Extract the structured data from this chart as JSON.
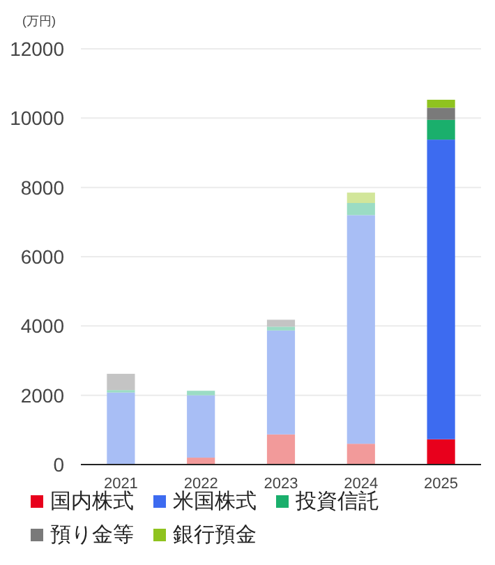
{
  "chart_data": {
    "type": "bar",
    "stacked": true,
    "ylabel": "(万円)",
    "categories": [
      "2021",
      "2022",
      "2023",
      "2024",
      "2025"
    ],
    "ylim": [
      0,
      12000
    ],
    "yticks": [
      0,
      2000,
      4000,
      6000,
      8000,
      10000,
      12000
    ],
    "grid": "y",
    "legend": "bottom",
    "series": [
      {
        "name": "国内株式",
        "color": "#e8001c",
        "colors": [
          "#f29a9a",
          "#f29a9a",
          "#f29a9a",
          "#f29a9a",
          "#e8001c"
        ],
        "values": [
          0,
          200,
          870,
          600,
          730
        ]
      },
      {
        "name": "米国株式",
        "color": "#3d6bf0",
        "colors": [
          "#a8bef5",
          "#a8bef5",
          "#a8bef5",
          "#a8bef5",
          "#3d6bf0"
        ],
        "values": [
          2080,
          1800,
          3000,
          6600,
          8650
        ]
      },
      {
        "name": "投資信託",
        "color": "#1aaf6c",
        "colors": [
          "#9bdcc4",
          "#9bdcc4",
          "#9bdcc4",
          "#9bdcc4",
          "#1aaf6c"
        ],
        "values": [
          70,
          130,
          110,
          350,
          570
        ]
      },
      {
        "name": "預り金等",
        "color": "#7a7a7a",
        "colors": [
          "#c4c4c4",
          null,
          "#c4c4c4",
          "#c4c4c4",
          "#7a7a7a"
        ],
        "values": [
          470,
          null,
          200,
          0,
          350
        ]
      },
      {
        "name": "銀行預金",
        "color": "#8fc31f",
        "colors": [
          "#d2e69a",
          "#d2e69a",
          "#d2e69a",
          "#d2e69a",
          "#8fc31f"
        ],
        "values": [
          0,
          0,
          0,
          300,
          230
        ]
      }
    ]
  }
}
